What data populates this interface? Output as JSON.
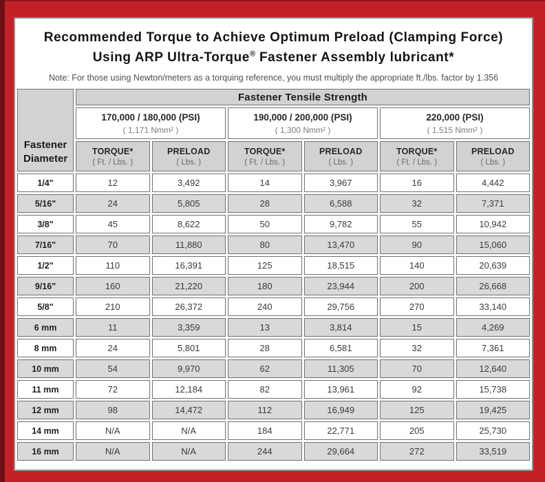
{
  "colors": {
    "frame_red": "#c32127",
    "frame_dark_red": "#6e1013",
    "header_gray": "#d2d2d2",
    "row_alt_gray": "#d9d9d9",
    "cell_border_gray": "#707070"
  },
  "title": {
    "line1": "Recommended Torque to Achieve Optimum Preload (Clamping Force)",
    "line2_before_reg": "Using ARP Ultra-Torque",
    "line2_reg_symbol": "®",
    "line2_after_reg": " Fastener Assembly lubricant*"
  },
  "note": "Note: For those using Newton/meters as a torquing reference, you must multiply the appropriate ft./lbs. factor by 1.356",
  "table": {
    "corner_header": "Fastener Diameter",
    "group_header": "Fastener Tensile Strength",
    "strength_groups": [
      {
        "psi": "170,000 / 180,000 (PSI)",
        "nmm": "( 1,171 Nmm² )"
      },
      {
        "psi": "190,000 / 200,000 (PSI)",
        "nmm": "( 1,300 Nmm² )"
      },
      {
        "psi": "220,000 (PSI)",
        "nmm": "( 1,515 Nmm² )"
      }
    ],
    "col_headers": {
      "torque_label": "TORQUE*",
      "torque_unit": "( Ft. / Lbs. )",
      "preload_label": "PRELOAD",
      "preload_unit": "( Lbs. )"
    },
    "rows": [
      {
        "diameter": "1/4\"",
        "values": [
          "12",
          "3,492",
          "14",
          "3,967",
          "16",
          "4,442"
        ]
      },
      {
        "diameter": "5/16\"",
        "values": [
          "24",
          "5,805",
          "28",
          "6,588",
          "32",
          "7,371"
        ]
      },
      {
        "diameter": "3/8\"",
        "values": [
          "45",
          "8,622",
          "50",
          "9,782",
          "55",
          "10,942"
        ]
      },
      {
        "diameter": "7/16\"",
        "values": [
          "70",
          "11,880",
          "80",
          "13,470",
          "90",
          "15,060"
        ]
      },
      {
        "diameter": "1/2\"",
        "values": [
          "110",
          "16,391",
          "125",
          "18,515",
          "140",
          "20,639"
        ]
      },
      {
        "diameter": "9/16\"",
        "values": [
          "160",
          "21,220",
          "180",
          "23,944",
          "200",
          "26,668"
        ]
      },
      {
        "diameter": "5/8\"",
        "values": [
          "210",
          "26,372",
          "240",
          "29,756",
          "270",
          "33,140"
        ]
      },
      {
        "diameter": "6 mm",
        "values": [
          "11",
          "3,359",
          "13",
          "3,814",
          "15",
          "4,269"
        ]
      },
      {
        "diameter": "8 mm",
        "values": [
          "24",
          "5,801",
          "28",
          "6,581",
          "32",
          "7,361"
        ]
      },
      {
        "diameter": "10 mm",
        "values": [
          "54",
          "9,970",
          "62",
          "11,305",
          "70",
          "12,640"
        ]
      },
      {
        "diameter": "11 mm",
        "values": [
          "72",
          "12,184",
          "82",
          "13,961",
          "92",
          "15,738"
        ]
      },
      {
        "diameter": "12 mm",
        "values": [
          "98",
          "14,472",
          "112",
          "16,949",
          "125",
          "19,425"
        ]
      },
      {
        "diameter": "14 mm",
        "values": [
          "N/A",
          "N/A",
          "184",
          "22,771",
          "205",
          "25,730"
        ]
      },
      {
        "diameter": "16 mm",
        "values": [
          "N/A",
          "N/A",
          "244",
          "29,664",
          "272",
          "33,519"
        ]
      }
    ]
  }
}
